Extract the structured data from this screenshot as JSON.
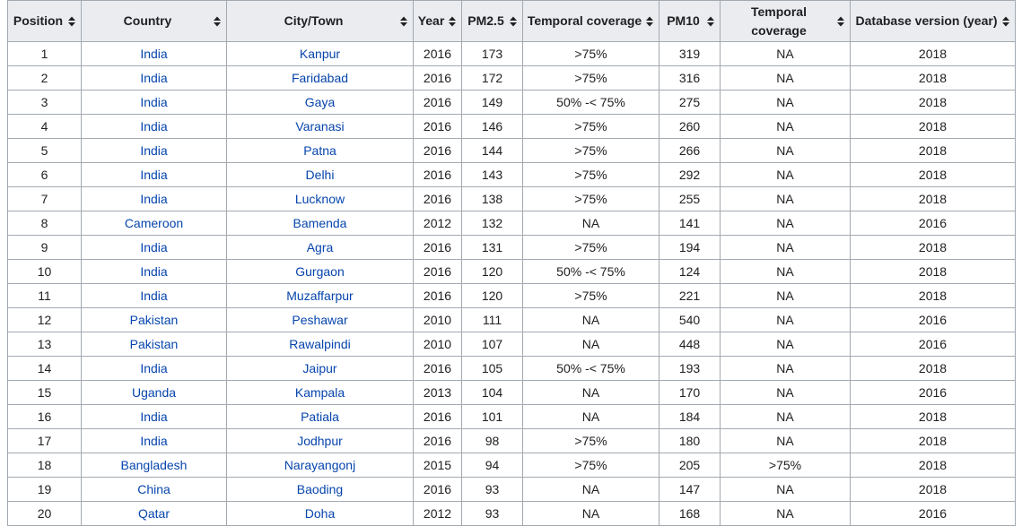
{
  "table": {
    "columns": [
      {
        "key": "position",
        "label": "Position"
      },
      {
        "key": "country",
        "label": "Country"
      },
      {
        "key": "city",
        "label": "City/Town"
      },
      {
        "key": "year",
        "label": "Year"
      },
      {
        "key": "pm25",
        "label": "PM2.5"
      },
      {
        "key": "temporal_coverage_pm25",
        "label": "Temporal coverage"
      },
      {
        "key": "pm10",
        "label": "PM10"
      },
      {
        "key": "temporal_coverage_pm10",
        "label": "Temporal coverage"
      },
      {
        "key": "database_version",
        "label": "Database version (year)"
      }
    ],
    "rows": [
      {
        "position": "1",
        "country": "India",
        "city": "Kanpur",
        "year": "2016",
        "pm25": "173",
        "tc1": ">75%",
        "pm10": "319",
        "tc2": "NA",
        "db": "2018"
      },
      {
        "position": "2",
        "country": "India",
        "city": "Faridabad",
        "year": "2016",
        "pm25": "172",
        "tc1": ">75%",
        "pm10": "316",
        "tc2": "NA",
        "db": "2018"
      },
      {
        "position": "3",
        "country": "India",
        "city": "Gaya",
        "year": "2016",
        "pm25": "149",
        "tc1": "50% -< 75%",
        "pm10": "275",
        "tc2": "NA",
        "db": "2018"
      },
      {
        "position": "4",
        "country": "India",
        "city": "Varanasi",
        "year": "2016",
        "pm25": "146",
        "tc1": ">75%",
        "pm10": "260",
        "tc2": "NA",
        "db": "2018"
      },
      {
        "position": "5",
        "country": "India",
        "city": "Patna",
        "year": "2016",
        "pm25": "144",
        "tc1": ">75%",
        "pm10": "266",
        "tc2": "NA",
        "db": "2018"
      },
      {
        "position": "6",
        "country": "India",
        "city": "Delhi",
        "year": "2016",
        "pm25": "143",
        "tc1": ">75%",
        "pm10": "292",
        "tc2": "NA",
        "db": "2018"
      },
      {
        "position": "7",
        "country": "India",
        "city": "Lucknow",
        "year": "2016",
        "pm25": "138",
        "tc1": ">75%",
        "pm10": "255",
        "tc2": "NA",
        "db": "2018"
      },
      {
        "position": "8",
        "country": "Cameroon",
        "city": "Bamenda",
        "year": "2012",
        "pm25": "132",
        "tc1": "NA",
        "pm10": "141",
        "tc2": "NA",
        "db": "2016"
      },
      {
        "position": "9",
        "country": "India",
        "city": "Agra",
        "year": "2016",
        "pm25": "131",
        "tc1": ">75%",
        "pm10": "194",
        "tc2": "NA",
        "db": "2018"
      },
      {
        "position": "10",
        "country": "India",
        "city": "Gurgaon",
        "year": "2016",
        "pm25": "120",
        "tc1": "50% -< 75%",
        "pm10": "124",
        "tc2": "NA",
        "db": "2018"
      },
      {
        "position": "11",
        "country": "India",
        "city": "Muzaffarpur",
        "year": "2016",
        "pm25": "120",
        "tc1": ">75%",
        "pm10": "221",
        "tc2": "NA",
        "db": "2018"
      },
      {
        "position": "12",
        "country": "Pakistan",
        "city": "Peshawar",
        "year": "2010",
        "pm25": "111",
        "tc1": "NA",
        "pm10": "540",
        "tc2": "NA",
        "db": "2016"
      },
      {
        "position": "13",
        "country": "Pakistan",
        "city": "Rawalpindi",
        "year": "2010",
        "pm25": "107",
        "tc1": "NA",
        "pm10": "448",
        "tc2": "NA",
        "db": "2016"
      },
      {
        "position": "14",
        "country": "India",
        "city": "Jaipur",
        "year": "2016",
        "pm25": "105",
        "tc1": "50% -< 75%",
        "pm10": "193",
        "tc2": "NA",
        "db": "2018"
      },
      {
        "position": "15",
        "country": "Uganda",
        "city": "Kampala",
        "year": "2013",
        "pm25": "104",
        "tc1": "NA",
        "pm10": "170",
        "tc2": "NA",
        "db": "2016"
      },
      {
        "position": "16",
        "country": "India",
        "city": "Patiala",
        "year": "2016",
        "pm25": "101",
        "tc1": "NA",
        "pm10": "184",
        "tc2": "NA",
        "db": "2018"
      },
      {
        "position": "17",
        "country": "India",
        "city": "Jodhpur",
        "year": "2016",
        "pm25": "98",
        "tc1": ">75%",
        "pm10": "180",
        "tc2": "NA",
        "db": "2018"
      },
      {
        "position": "18",
        "country": "Bangladesh",
        "city": "Narayangonj",
        "year": "2015",
        "pm25": "94",
        "tc1": ">75%",
        "pm10": "205",
        "tc2": ">75%",
        "db": "2018"
      },
      {
        "position": "19",
        "country": "China",
        "city": "Baoding",
        "year": "2016",
        "pm25": "93",
        "tc1": "NA",
        "pm10": "147",
        "tc2": "NA",
        "db": "2018"
      },
      {
        "position": "20",
        "country": "Qatar",
        "city": "Doha",
        "year": "2012",
        "pm25": "93",
        "tc1": "NA",
        "pm10": "168",
        "tc2": "NA",
        "db": "2016"
      }
    ]
  },
  "colors": {
    "link": "#0645ad",
    "text": "#202122",
    "header_bg": "#eaecf0",
    "border": "#a2a9b1"
  },
  "icons": {
    "sort": "sort-arrows-icon"
  }
}
